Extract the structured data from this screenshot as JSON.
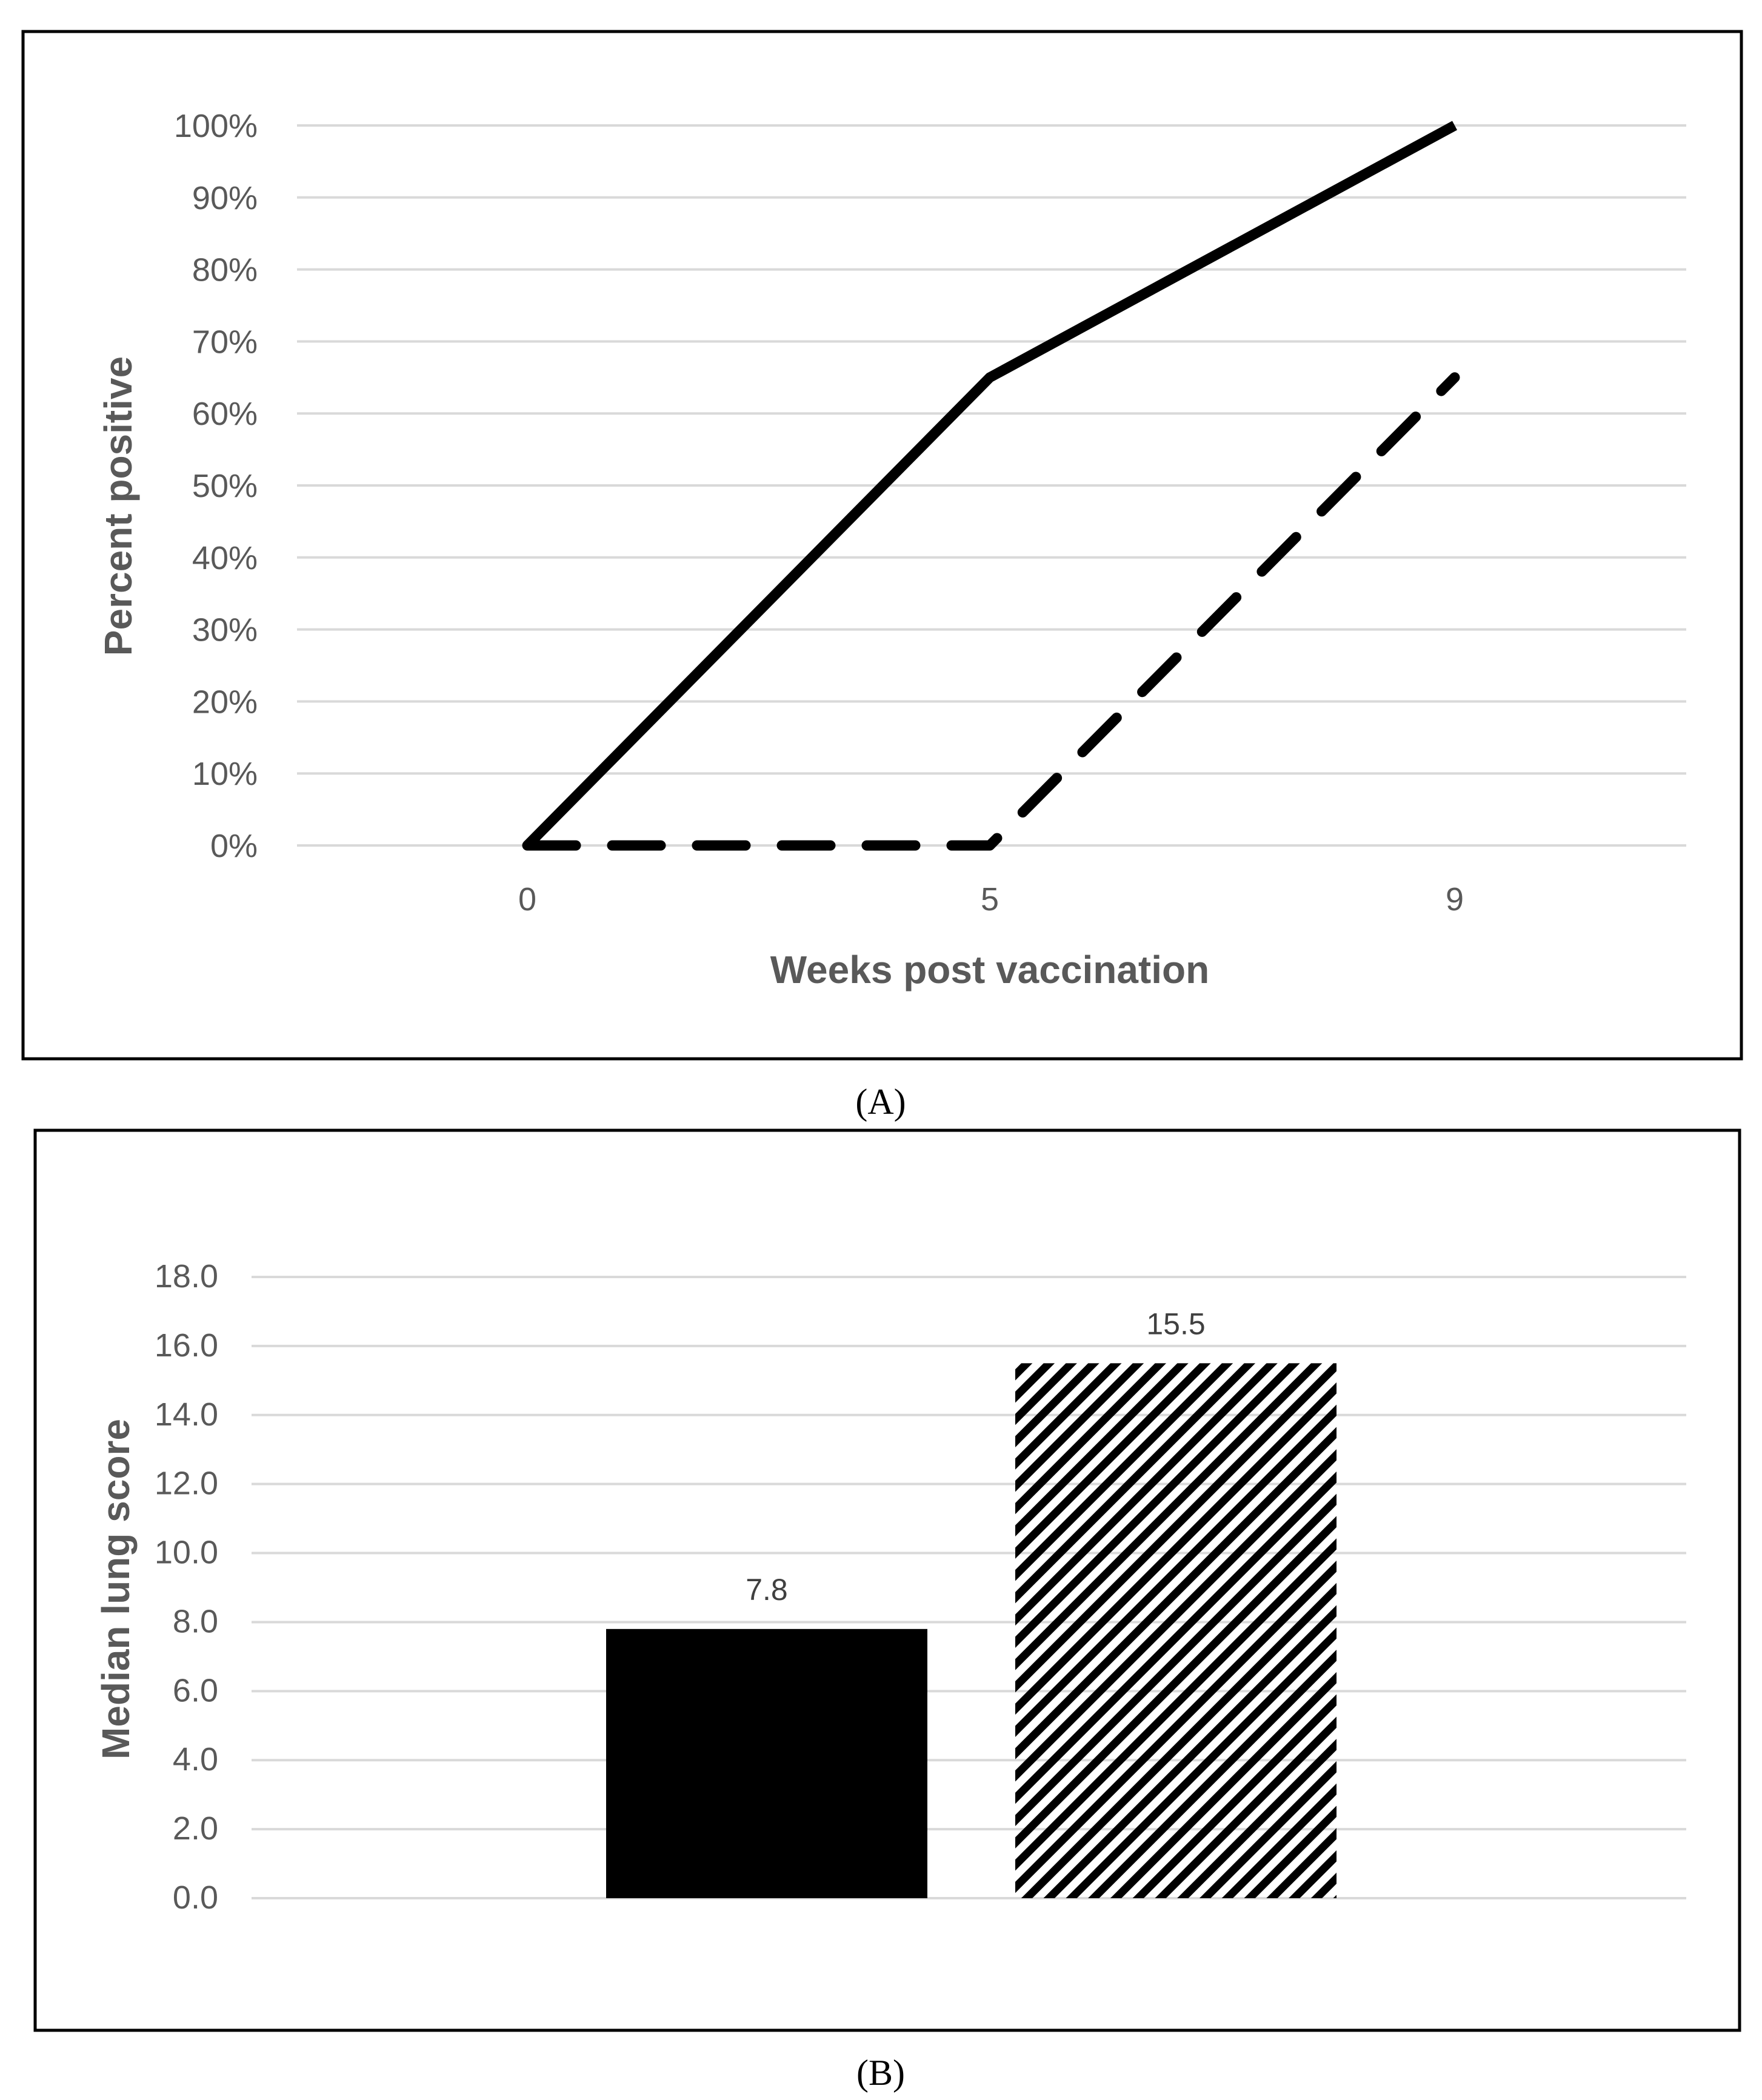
{
  "chart_data": [
    {
      "panel": "A",
      "type": "line",
      "caption": "(A)",
      "xlabel": "Weeks post vaccination",
      "ylabel": "Percent positive",
      "categories": [
        "0",
        "5",
        "9"
      ],
      "yticks": [
        "0%",
        "10%",
        "20%",
        "30%",
        "40%",
        "50%",
        "60%",
        "70%",
        "80%",
        "90%",
        "100%"
      ],
      "ylim": [
        0,
        100
      ],
      "grid": true,
      "series": [
        {
          "style": "solid",
          "color": "#000000",
          "values": [
            0,
            65,
            100
          ]
        },
        {
          "style": "dashed",
          "color": "#000000",
          "values": [
            0,
            0,
            65
          ]
        }
      ]
    },
    {
      "panel": "B",
      "type": "bar",
      "caption": "(B)",
      "xlabel": "",
      "ylabel": "Median lung score",
      "yticks": [
        "0.0",
        "2.0",
        "4.0",
        "6.0",
        "8.0",
        "10.0",
        "12.0",
        "14.0",
        "16.0",
        "18.0"
      ],
      "ylim": [
        0,
        18
      ],
      "grid": true,
      "bars": [
        {
          "value": 7.8,
          "label": "7.8",
          "fill": "solid",
          "color": "#000000"
        },
        {
          "value": 15.5,
          "label": "15.5",
          "fill": "hatched",
          "color": "#000000"
        }
      ]
    }
  ]
}
